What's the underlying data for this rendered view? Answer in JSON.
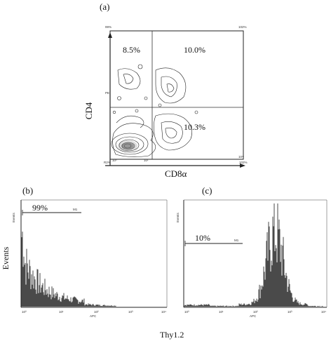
{
  "figure": {
    "panel_a": {
      "label": "(a)",
      "y_axis_label": "CD4",
      "x_axis_label": "CD8α",
      "quadrants": {
        "upper_left": "8.5%",
        "upper_right": "10.0%",
        "lower_right": "10.3%"
      }
    },
    "panel_b": {
      "label": "(b)",
      "gate_percent": "99%",
      "y_axis_label": "Events"
    },
    "panel_c": {
      "label": "(c)",
      "gate_percent": "10%"
    },
    "shared_x_label": "Thy1.2"
  },
  "chart_data": [
    {
      "type": "scatter",
      "subtype": "contour-plot",
      "xlabel": "CD8α",
      "ylabel": "CD4",
      "scale": "log",
      "quadrant_percentages": {
        "upper_left": 8.5,
        "upper_right": 10.0,
        "lower_right": 10.3
      }
    },
    {
      "type": "bar",
      "subtype": "histogram",
      "ylabel": "Events",
      "scale": "log",
      "gate_percent": 99,
      "distribution": "low fluorescence, decaying from first decade"
    },
    {
      "type": "bar",
      "subtype": "histogram",
      "scale": "log",
      "gate_percent": 10,
      "distribution": "single peak near upper decade"
    }
  ]
}
